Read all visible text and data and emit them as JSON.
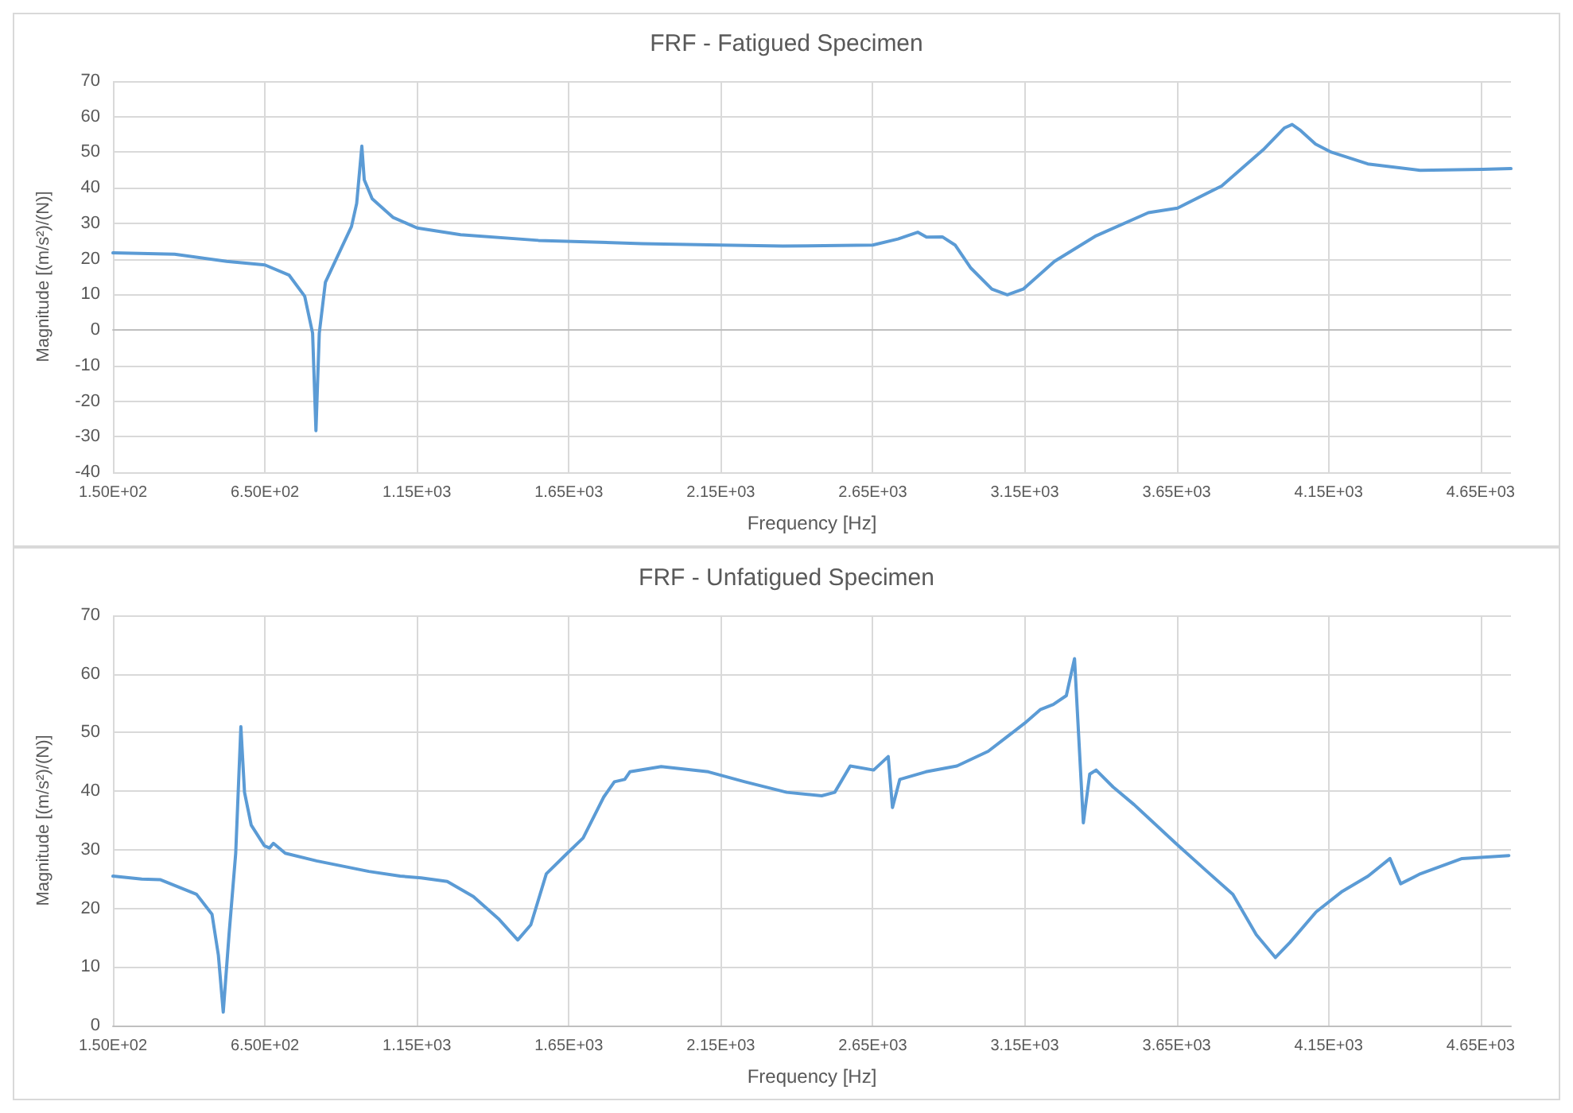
{
  "chart_data": [
    {
      "type": "line",
      "title": "FRF - Fatigued Specimen",
      "xlabel": "Frequency [Hz]",
      "ylabel": "Magnitude [(m/s²)/(N)]",
      "xlim": [
        150,
        4750
      ],
      "xticks": [
        {
          "value": 150,
          "label": "1.50E+02"
        },
        {
          "value": 650,
          "label": "6.50E+02"
        },
        {
          "value": 1150,
          "label": "1.15E+03"
        },
        {
          "value": 1650,
          "label": "1.65E+03"
        },
        {
          "value": 2150,
          "label": "2.15E+03"
        },
        {
          "value": 2650,
          "label": "2.65E+03"
        },
        {
          "value": 3150,
          "label": "3.15E+03"
        },
        {
          "value": 3650,
          "label": "3.65E+03"
        },
        {
          "value": 4150,
          "label": "4.15E+03"
        },
        {
          "value": 4650,
          "label": "4.65E+03"
        }
      ],
      "ylim": [
        -40,
        70
      ],
      "yticks": [
        -40,
        -30,
        -20,
        -10,
        0,
        10,
        20,
        30,
        40,
        50,
        60,
        70
      ],
      "grid": true,
      "marker": "none",
      "line_style": "solid",
      "series": [
        {
          "color": "#5b9bd5",
          "x": [
            150,
            353,
            524,
            650,
            730,
            781,
            807,
            818,
            829,
            849,
            892,
            935,
            952,
            969,
            977,
            1003,
            1071,
            1151,
            1294,
            1550,
            1892,
            2148,
            2354,
            2650,
            2733,
            2798,
            2827,
            2879,
            2921,
            2973,
            3042,
            3093,
            3145,
            3248,
            3385,
            3557,
            3653,
            3798,
            3935,
            4004,
            4030,
            4055,
            4107,
            4159,
            4279,
            4451,
            4657,
            4750
          ],
          "values": [
            21.7,
            21.3,
            19.3,
            18.3,
            15.4,
            9.5,
            -0.9,
            -28.3,
            -0.9,
            13.4,
            21.3,
            29.1,
            35.6,
            51.7,
            42.2,
            36.9,
            31.7,
            28.7,
            26.8,
            25.2,
            24.3,
            23.9,
            23.6,
            23.9,
            25.6,
            27.5,
            26.1,
            26.2,
            23.9,
            17.4,
            11.5,
            9.9,
            11.5,
            19.3,
            26.5,
            33.0,
            34.3,
            40.5,
            50.7,
            56.8,
            57.8,
            56.3,
            52.3,
            50.0,
            46.7,
            44.9,
            45.2,
            45.4
          ]
        }
      ]
    },
    {
      "type": "line",
      "title": "FRF - Unfatigued Specimen",
      "xlabel": "Frequency [Hz]",
      "ylabel": "Magnitude [(m/s²)/(N)]",
      "xlim": [
        150,
        4750
      ],
      "xticks": [
        {
          "value": 150,
          "label": "1.50E+02"
        },
        {
          "value": 650,
          "label": "6.50E+02"
        },
        {
          "value": 1150,
          "label": "1.15E+03"
        },
        {
          "value": 1650,
          "label": "1.65E+03"
        },
        {
          "value": 2150,
          "label": "2.15E+03"
        },
        {
          "value": 2650,
          "label": "2.65E+03"
        },
        {
          "value": 3150,
          "label": "3.15E+03"
        },
        {
          "value": 3650,
          "label": "3.65E+03"
        },
        {
          "value": 4150,
          "label": "4.15E+03"
        },
        {
          "value": 4650,
          "label": "4.65E+03"
        }
      ],
      "ylim": [
        0,
        70
      ],
      "yticks": [
        0,
        10,
        20,
        30,
        40,
        50,
        60,
        70
      ],
      "grid": true,
      "marker": "none",
      "line_style": "solid",
      "series": [
        {
          "color": "#5b9bd5",
          "x": [
            150,
            245,
            305,
            425,
            476,
            497,
            513,
            532,
            554,
            571,
            583,
            605,
            648,
            665,
            678,
            717,
            820,
            992,
            1095,
            1164,
            1250,
            1336,
            1421,
            1482,
            1525,
            1576,
            1645,
            1697,
            1765,
            1800,
            1834,
            1851,
            1954,
            2109,
            2229,
            2367,
            2482,
            2525,
            2576,
            2653,
            2701,
            2715,
            2739,
            2825,
            2927,
            3030,
            3150,
            3201,
            3244,
            3287,
            3314,
            3343,
            3364,
            3385,
            3441,
            3510,
            3647,
            3750,
            3835,
            3912,
            3975,
            4023,
            4109,
            4195,
            4280,
            4352,
            4387,
            4452,
            4589,
            4743
          ],
          "values": [
            25.5,
            25.0,
            24.9,
            22.4,
            19.0,
            12.0,
            2.3,
            15.5,
            29.4,
            51.0,
            39.8,
            34.2,
            30.7,
            30.3,
            31.1,
            29.4,
            28.1,
            26.3,
            25.5,
            25.2,
            24.6,
            22.0,
            18.1,
            14.6,
            17.2,
            25.9,
            29.4,
            32.0,
            39.0,
            41.6,
            42.0,
            43.3,
            44.2,
            43.3,
            41.6,
            39.8,
            39.2,
            39.8,
            44.3,
            43.6,
            45.9,
            37.2,
            42.0,
            43.3,
            44.3,
            46.8,
            51.6,
            53.9,
            54.8,
            56.3,
            62.6,
            34.6,
            42.9,
            43.6,
            40.7,
            37.7,
            31.1,
            26.3,
            22.4,
            15.5,
            11.6,
            14.2,
            19.4,
            22.9,
            25.5,
            28.5,
            24.2,
            25.9,
            28.5,
            29.0
          ]
        }
      ]
    }
  ]
}
